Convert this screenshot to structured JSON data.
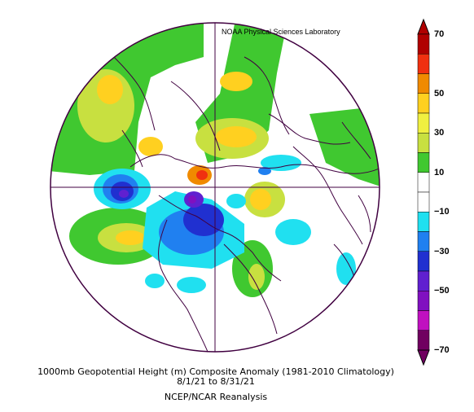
{
  "credit": "NOAA Physical Sciences Laboratory",
  "caption": {
    "line1": "1000mb Geopotential Height (m) Composite Anomaly (1981-2010 Climatology)",
    "line2": "8/1/21  to 8/31/21",
    "line3": "NCEP/NCAR Reanalysis"
  },
  "colorbar": {
    "labels": [
      "70",
      "50",
      "30",
      "10",
      "−10",
      "−30",
      "−50",
      "−70"
    ],
    "colors": [
      "#b00000",
      "#f03010",
      "#f08a00",
      "#ffd020",
      "#f0f040",
      "#c8e040",
      "#40c830",
      "#ffffff",
      "#ffffff",
      "#20e0f0",
      "#2080f0",
      "#2030d0",
      "#6020d0",
      "#8010c0",
      "#c010c0",
      "#700060"
    ]
  },
  "map": {
    "projection": "north polar stereographic",
    "land_color": "#400040",
    "palette": {
      "pos_weak": "#40c830",
      "pos_mid": "#c8e040",
      "pos_strong": "#ffd020",
      "pos_stronger": "#f08a00",
      "pos_max": "#f03010",
      "neg_weak": "#20e0f0",
      "neg_mid": "#2080f0",
      "neg_strong": "#2030d0",
      "neg_stronger": "#6020d0",
      "neg_max": "#8010c0"
    }
  }
}
